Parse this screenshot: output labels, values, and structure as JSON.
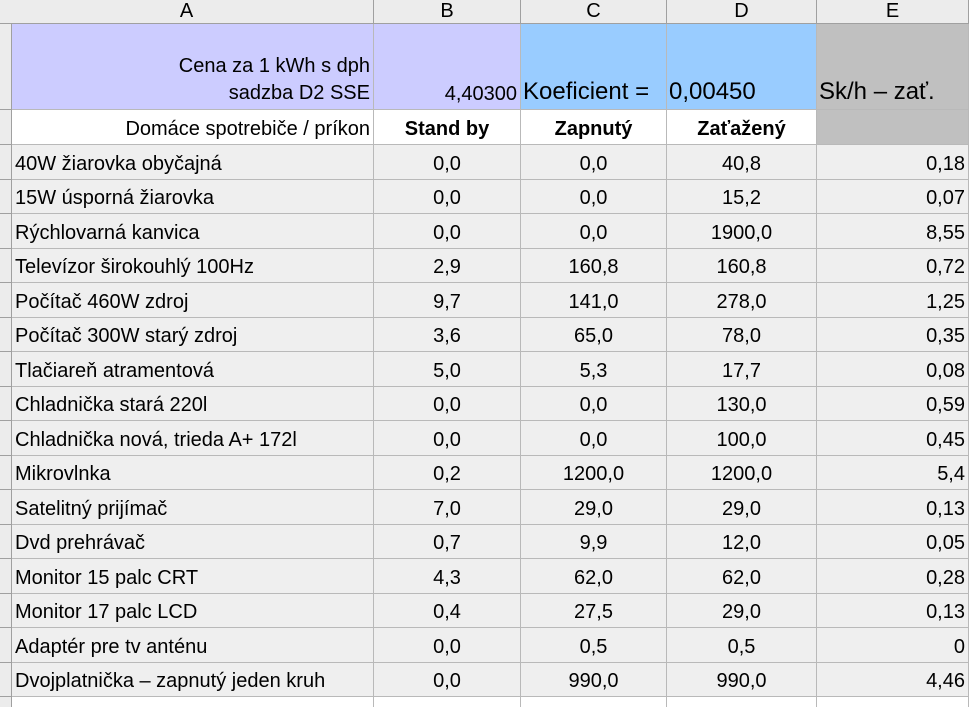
{
  "columns": [
    "A",
    "B",
    "C",
    "D",
    "E"
  ],
  "header": {
    "price_label_line1": "Cena za 1 kWh s dph",
    "price_label_line2": "sadzba D2 SSE",
    "price_value": "4,40300",
    "koef_label": "Koeficient =",
    "koef_value": "0,00450",
    "e_label": "Sk/h – zať."
  },
  "subheader": {
    "a": "Domáce spotrebiče / príkon",
    "b": "Stand by",
    "c": "Zapnutý",
    "d": "Zaťažený",
    "e": ""
  },
  "rows": [
    {
      "name": "40W žiarovka obyčajná",
      "standby": "0,0",
      "on": "0,0",
      "load": "40,8",
      "cost": "0,18"
    },
    {
      "name": "15W úsporná žiarovka",
      "standby": "0,0",
      "on": "0,0",
      "load": "15,2",
      "cost": "0,07"
    },
    {
      "name": "Rýchlovarná kanvica",
      "standby": "0,0",
      "on": "0,0",
      "load": "1900,0",
      "cost": "8,55"
    },
    {
      "name": "Televízor širokouhlý 100Hz",
      "standby": "2,9",
      "on": "160,8",
      "load": "160,8",
      "cost": "0,72"
    },
    {
      "name": "Počítač 460W zdroj",
      "standby": "9,7",
      "on": "141,0",
      "load": "278,0",
      "cost": "1,25"
    },
    {
      "name": "Počítač 300W starý zdroj",
      "standby": "3,6",
      "on": "65,0",
      "load": "78,0",
      "cost": "0,35"
    },
    {
      "name": "Tlačiareň atramentová",
      "standby": "5,0",
      "on": "5,3",
      "load": "17,7",
      "cost": "0,08"
    },
    {
      "name": "Chladnička stará 220l",
      "standby": "0,0",
      "on": "0,0",
      "load": "130,0",
      "cost": "0,59"
    },
    {
      "name": "Chladnička nová, trieda A+ 172l",
      "standby": "0,0",
      "on": "0,0",
      "load": "100,0",
      "cost": "0,45"
    },
    {
      "name": "Mikrovlnka",
      "standby": "0,2",
      "on": "1200,0",
      "load": "1200,0",
      "cost": "5,4"
    },
    {
      "name": "Satelitný prijímač",
      "standby": "7,0",
      "on": "29,0",
      "load": "29,0",
      "cost": "0,13"
    },
    {
      "name": "Dvd prehrávač",
      "standby": "0,7",
      "on": "9,9",
      "load": "12,0",
      "cost": "0,05"
    },
    {
      "name": "Monitor 15 palc CRT",
      "standby": "4,3",
      "on": "62,0",
      "load": "62,0",
      "cost": "0,28"
    },
    {
      "name": "Monitor 17 palc LCD",
      "standby": "0,4",
      "on": "27,5",
      "load": "29,0",
      "cost": "0,13"
    },
    {
      "name": "Adaptér pre tv anténu",
      "standby": "0,0",
      "on": "0,5",
      "load": "0,5",
      "cost": "0"
    },
    {
      "name": "Dvojplatnička – zapnutý jeden kruh",
      "standby": "0,0",
      "on": "990,0",
      "load": "990,0",
      "cost": "4,46"
    }
  ]
}
